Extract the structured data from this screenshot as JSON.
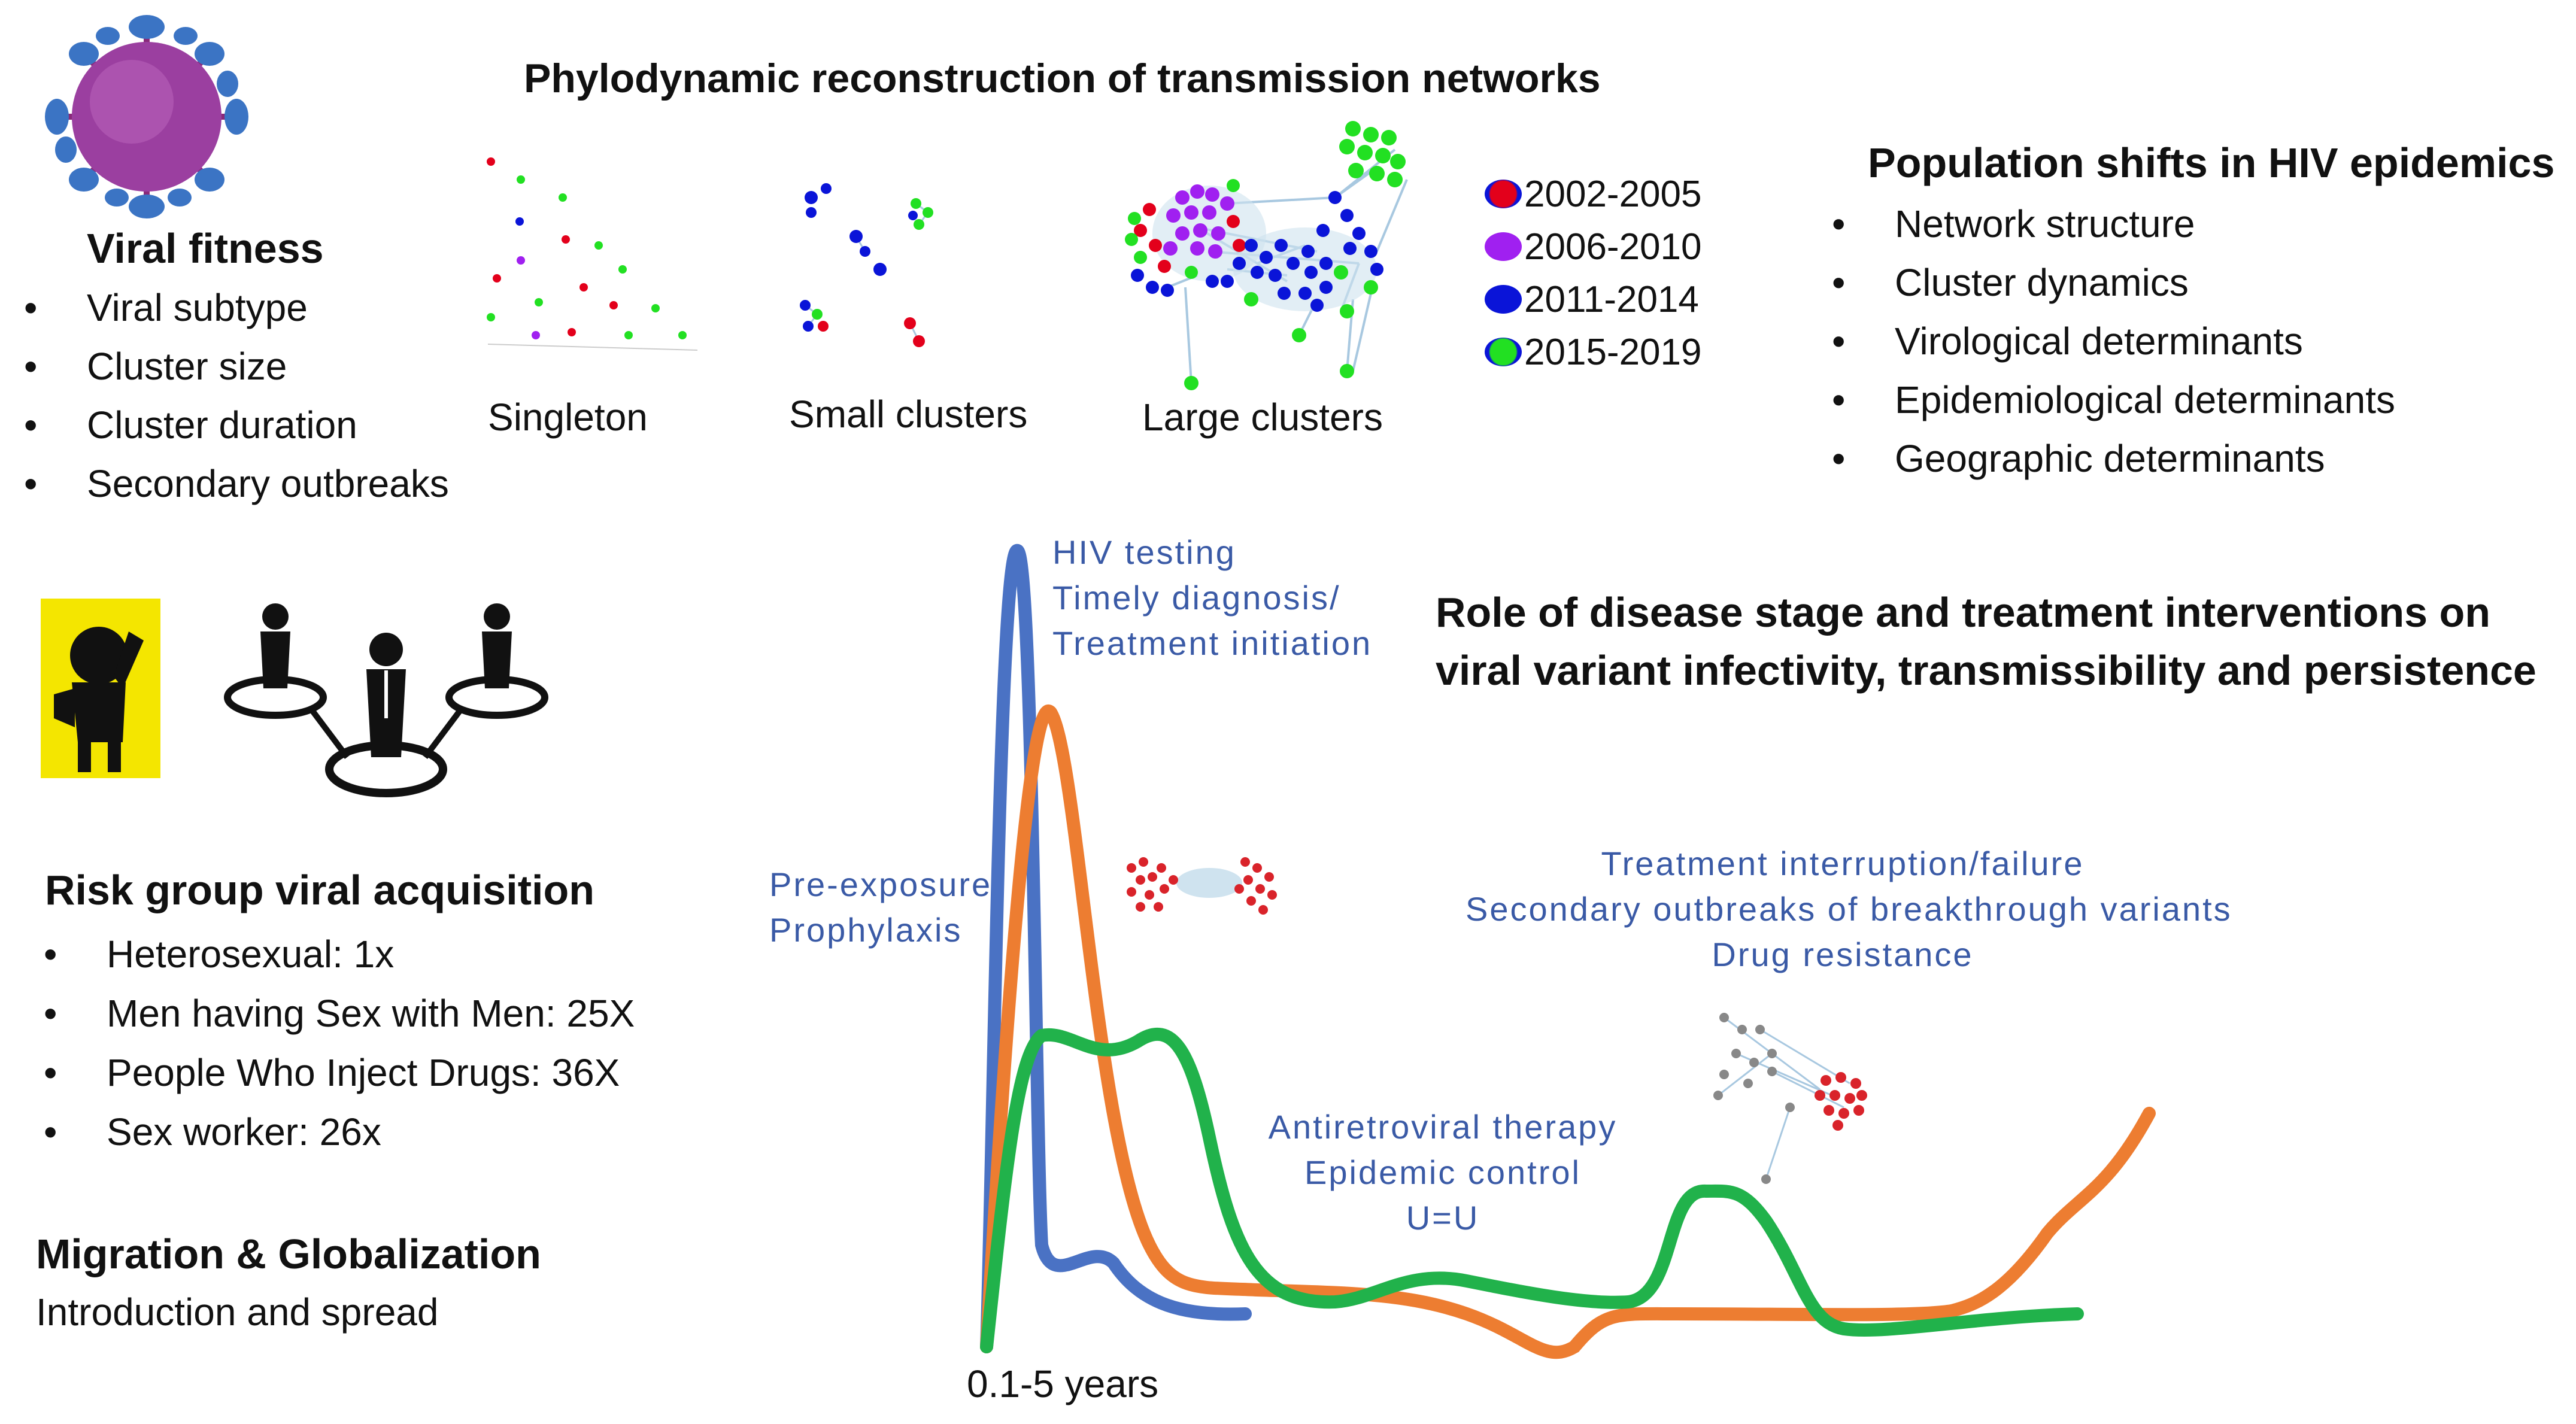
{
  "title": "Phylodynamic reconstruction of transmission networks",
  "viral_fitness": {
    "heading": "Viral fitness",
    "items": [
      "Viral subtype",
      "Cluster size",
      "Cluster duration",
      "Secondary outbreaks"
    ]
  },
  "network_labels": {
    "singleton": "Singleton",
    "small": "Small clusters",
    "large": "Large clusters"
  },
  "legend": [
    {
      "label": "2002-2005",
      "color": "#e3001b"
    },
    {
      "label": "2006-2010",
      "color": "#a020f0"
    },
    {
      "label": "2011-2014",
      "color": "#0a14d8"
    },
    {
      "label": "2015-2019",
      "color": "#22e022"
    }
  ],
  "population_shifts": {
    "heading": "Population shifts in HIV epidemics",
    "items": [
      "Network structure",
      "Cluster dynamics",
      "Virological determinants",
      "Epidemiological determinants",
      "Geographic determinants"
    ]
  },
  "role": {
    "line1": "Role of disease stage and treatment interventions on",
    "line2": "viral variant   infectivity, transmissibility and persistence"
  },
  "risk": {
    "heading": "Risk group viral acquisition",
    "items": [
      "Heterosexual: 1x",
      "Men having Sex with Men: 25X",
      "People Who Inject Drugs: 36X",
      "Sex worker: 26x"
    ]
  },
  "migration": {
    "heading": "Migration & Globalization",
    "text": "Introduction and spread"
  },
  "annotations": {
    "hiv1": "HIV testing",
    "hiv2": "Timely diagnosis/",
    "hiv3": "Treatment initiation",
    "prep1": "Pre-exposure",
    "prep2": "Prophylaxis",
    "tx1": "Treatment interruption/failure",
    "tx2": "Secondary outbreaks of breakthrough variants",
    "tx3": "Drug resistance",
    "art1": "Antiretroviral therapy",
    "art2": "Epidemic control",
    "art3": "U=U"
  },
  "x_label": "0.1-5 years",
  "curve_colors": {
    "blue": "#4a72c4",
    "orange": "#ed7d31",
    "green": "#21b24b"
  }
}
